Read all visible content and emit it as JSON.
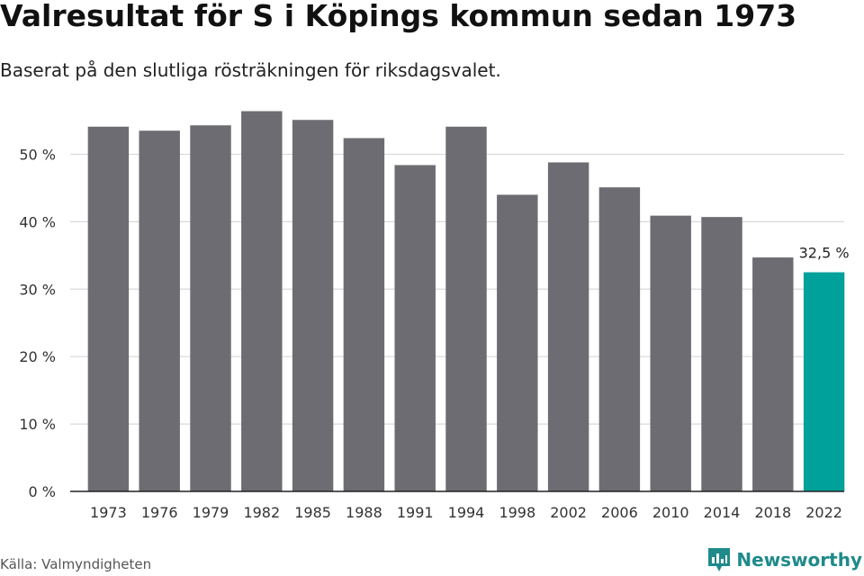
{
  "chart_data": {
    "type": "bar",
    "title": "Valresultat för S i Köpings kommun sedan 1973",
    "subtitle": "Baserat på den slutliga rösträkningen för riksdagsvalet.",
    "categories": [
      "1973",
      "1976",
      "1979",
      "1982",
      "1985",
      "1988",
      "1991",
      "1994",
      "1998",
      "2002",
      "2006",
      "2010",
      "2014",
      "2018",
      "2022"
    ],
    "values": [
      54.1,
      53.5,
      54.3,
      56.4,
      55.1,
      52.4,
      48.4,
      54.1,
      44.0,
      48.8,
      45.1,
      40.9,
      40.7,
      34.7,
      32.5
    ],
    "ylim": [
      0,
      55
    ],
    "yticks": [
      0,
      10,
      20,
      30,
      40,
      50
    ],
    "ytick_labels": [
      "0 %",
      "10 %",
      "20 %",
      "30 %",
      "40 %",
      "50 %"
    ],
    "highlight_index": 14,
    "highlight_label": "32,5 %",
    "xlabel": "",
    "ylabel": "",
    "grid": true,
    "colors": {
      "bar": "#6d6c72",
      "highlight": "#00a19a",
      "grid": "#d9d9d9",
      "axis": "#222222"
    }
  },
  "footer": {
    "source": "Källa: Valmyndigheten",
    "brand": "Newsworthy"
  },
  "icons": {
    "brand_logo": "newsworthy-logo-icon"
  }
}
